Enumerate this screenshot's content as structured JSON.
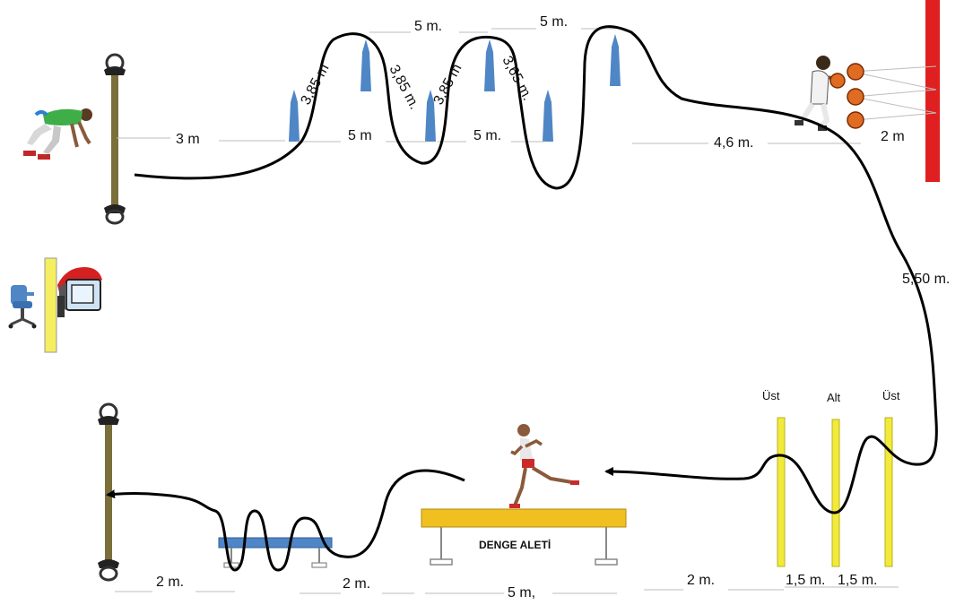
{
  "distances": {
    "start_to_first_cone": "3 m",
    "cone_spacing_bottom_1": "5 m",
    "cone_spacing_bottom_2": "5 m.",
    "cone_spacing_top_1": "5 m.",
    "cone_spacing_top_2": "5 m.",
    "diagonal_1": "3,85 m",
    "diagonal_2": "3,85 m.",
    "diagonal_3": "3,85 m",
    "diagonal_4": "3,65 m.",
    "cones_to_basket": "4,6 m.",
    "basket_to_wall": "2 m",
    "right_side_descent": "5,50 m.",
    "hurdle_gap_1": "1,5 m.",
    "hurdle_gap_2": "1,5 m.",
    "to_hurdles": "2 m.",
    "balance_beam_length": "5 m,",
    "beam_to_bench": "2 m.",
    "bench_to_finish": "2 m."
  },
  "hurdles": {
    "labels": [
      "Üst",
      "Alt",
      "Üst"
    ]
  },
  "balance_beam": {
    "label": "DENGE ALETİ"
  },
  "colors": {
    "cone": "#4f86c6",
    "wall": "#e02020",
    "hurdle": "#f2ea3a",
    "beam": "#f0c020",
    "bench": "#4f86c6",
    "path": "#000000",
    "start_pole": "#7a6f3a",
    "desk_panel": "#f4ee60"
  },
  "icons": [
    "crouching-starter-icon",
    "basketball-thrower-icon",
    "basketball-icon",
    "running-athlete-icon",
    "office-chair-icon",
    "stopwatch-camera-icon"
  ]
}
